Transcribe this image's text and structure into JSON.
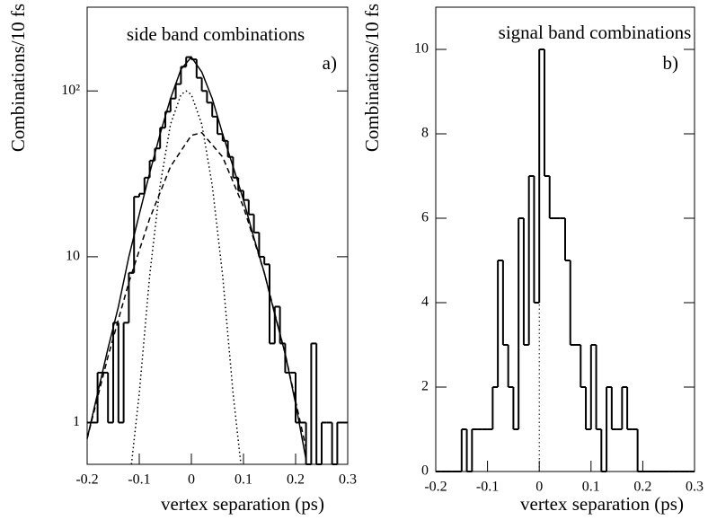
{
  "chart_data": [
    {
      "type": "histogram",
      "log_y": true,
      "y_label": "Combinations/10 fs",
      "x_label": "vertex separation (ps)",
      "annotations": [
        "side band combinations",
        "a)"
      ],
      "xlim": [
        -0.2,
        0.3
      ],
      "xticks": [
        -0.2,
        -0.1,
        0,
        0.1,
        0.2,
        0.3
      ],
      "ylim": [
        0.56,
        320
      ],
      "yticks": [
        1,
        10,
        {
          "value": 100,
          "label": "10²"
        }
      ],
      "color": "#000000",
      "bins": [
        -0.2,
        -0.19,
        -0.18,
        -0.17,
        -0.16,
        -0.15,
        -0.14,
        -0.13,
        -0.12,
        -0.11,
        -0.1,
        -0.09,
        -0.08,
        -0.07,
        -0.06,
        -0.05,
        -0.04,
        -0.03,
        -0.02,
        -0.01,
        0,
        0.01,
        0.02,
        0.03,
        0.04,
        0.05,
        0.06,
        0.07,
        0.08,
        0.09,
        0.1,
        0.11,
        0.12,
        0.13,
        0.14,
        0.15,
        0.16,
        0.17,
        0.18,
        0.19,
        0.2,
        0.21,
        0.22,
        0.23,
        0.24,
        0.25,
        0.26,
        0.27,
        0.28,
        0.29,
        0.3
      ],
      "values": [
        1,
        1,
        2,
        2,
        1,
        4,
        1,
        4,
        8,
        23,
        24,
        30,
        38,
        45,
        60,
        75,
        90,
        110,
        140,
        160,
        155,
        120,
        100,
        85,
        70,
        55,
        50,
        40,
        30,
        25,
        22,
        18,
        14,
        10,
        9,
        3,
        5,
        3,
        2,
        2,
        1,
        1,
        0,
        3,
        0,
        1,
        1,
        0,
        1,
        1
      ],
      "lines": [
        {
          "dash": "solid",
          "x": [
            -0.2,
            -0.18,
            -0.16,
            -0.14,
            -0.12,
            -0.1,
            -0.08,
            -0.06,
            -0.04,
            -0.02,
            0,
            0.02,
            0.04,
            0.06,
            0.08,
            0.1,
            0.12,
            0.14,
            0.16,
            0.18,
            0.2,
            0.22
          ],
          "values": [
            0.8,
            1.5,
            2.8,
            5,
            10,
            18,
            32,
            55,
            90,
            135,
            160,
            130,
            90,
            55,
            35,
            22,
            13,
            8,
            4.5,
            2.6,
            1.3,
            0.6
          ]
        },
        {
          "dash": "dashed",
          "x": [
            -0.2,
            -0.16,
            -0.12,
            -0.08,
            -0.04,
            0,
            0.02,
            0.06,
            0.1,
            0.14,
            0.18,
            0.22
          ],
          "values": [
            0.8,
            2.5,
            7,
            17,
            35,
            54,
            56,
            40,
            20,
            8,
            2.6,
            0.7
          ]
        },
        {
          "dash": "dotted",
          "x": [
            -0.115,
            -0.1,
            -0.08,
            -0.06,
            -0.04,
            -0.02,
            -0.01,
            0,
            0.02,
            0.04,
            0.06,
            0.08,
            0.095
          ],
          "values": [
            0.56,
            1.5,
            7.7,
            27,
            63,
            95,
            100,
            95,
            63,
            27,
            7.7,
            1.5,
            0.56
          ]
        }
      ]
    },
    {
      "type": "histogram",
      "log_y": false,
      "y_label": "Combinations/10 fs",
      "x_label": "vertex separation (ps)",
      "annotations": [
        "signal band combinations",
        "b)"
      ],
      "xlim": [
        -0.2,
        0.3
      ],
      "xticks": [
        -0.2,
        -0.1,
        0,
        0.1,
        0.2,
        0.3
      ],
      "ylim": [
        0,
        11
      ],
      "yticks": [
        0,
        2,
        4,
        6,
        8,
        10
      ],
      "color": "#000000",
      "bins": [
        -0.2,
        -0.19,
        -0.18,
        -0.17,
        -0.16,
        -0.15,
        -0.14,
        -0.13,
        -0.12,
        -0.11,
        -0.1,
        -0.09,
        -0.08,
        -0.07,
        -0.06,
        -0.05,
        -0.04,
        -0.03,
        -0.02,
        -0.01,
        0,
        0.01,
        0.02,
        0.03,
        0.04,
        0.05,
        0.06,
        0.07,
        0.08,
        0.09,
        0.1,
        0.11,
        0.12,
        0.13,
        0.14,
        0.15,
        0.16,
        0.17,
        0.18,
        0.19,
        0.2,
        0.21,
        0.22,
        0.23,
        0.24,
        0.25,
        0.26,
        0.27,
        0.28,
        0.29,
        0.3
      ],
      "values": [
        0,
        0,
        0,
        0,
        0,
        1,
        0,
        1,
        1,
        1,
        1,
        2,
        5,
        3,
        2,
        1,
        6,
        3,
        7,
        4,
        10,
        7,
        6,
        6,
        6,
        5,
        3,
        3,
        2,
        1,
        3,
        1,
        0,
        2,
        1,
        1,
        2,
        1,
        1,
        0,
        0,
        0,
        0,
        0,
        0,
        0,
        0,
        0,
        0,
        0
      ],
      "reference_line": {
        "x": 0,
        "y_to": 4
      }
    }
  ]
}
